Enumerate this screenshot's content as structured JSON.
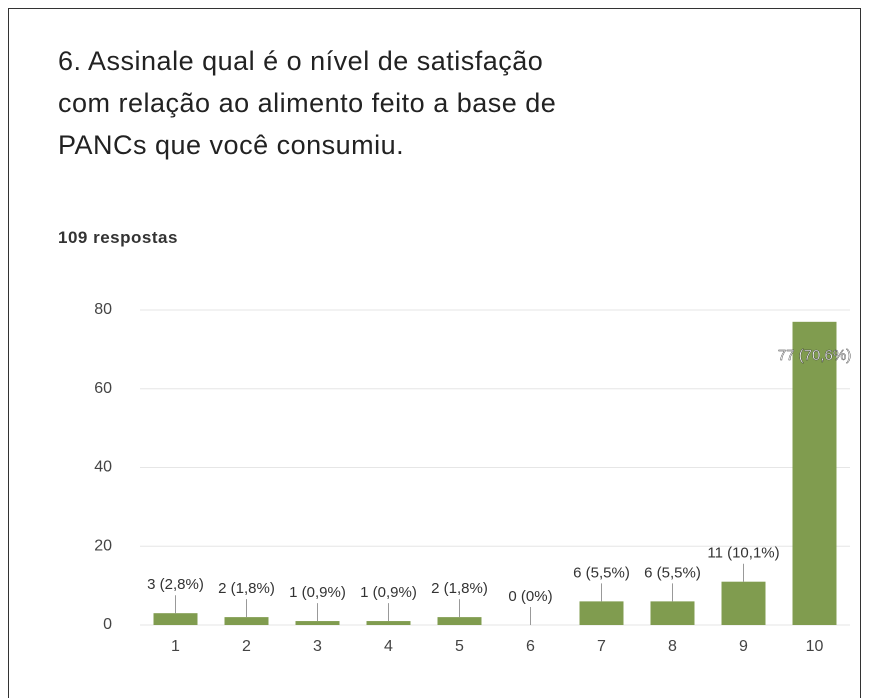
{
  "chart_data": {
    "type": "bar",
    "title": "6. Assinale qual é o nível de satisfação com relação ao alimento feito a base de PANCs que você consumiu.",
    "subtitle": "109 respostas",
    "categories": [
      "1",
      "2",
      "3",
      "4",
      "5",
      "6",
      "7",
      "8",
      "9",
      "10"
    ],
    "values": [
      3,
      2,
      1,
      1,
      2,
      0,
      6,
      6,
      11,
      77
    ],
    "value_labels": [
      "3 (2,8%)",
      "2 (1,8%)",
      "1 (0,9%)",
      "1 (0,9%)",
      "2 (1,8%)",
      "0 (0%)",
      "6 (5,5%)",
      "6 (5,5%)",
      "11 (10,1%)",
      "77 (70,6%)"
    ],
    "color": "#809c4f",
    "ylim": [
      0,
      80
    ],
    "yticks": [
      0,
      20,
      40,
      60,
      80
    ],
    "grid": true
  }
}
